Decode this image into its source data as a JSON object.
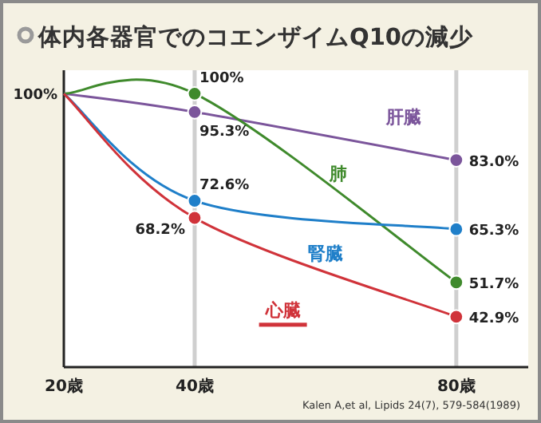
{
  "chart_data": {
    "type": "line",
    "title": "体内各器官でのコエンザイムQ10の減少",
    "x": [
      20,
      40,
      80
    ],
    "xlim": [
      20,
      91
    ],
    "xticks": [
      {
        "value": 20,
        "label": "20歳"
      },
      {
        "value": 40,
        "label": "40歳"
      },
      {
        "value": 80,
        "label": "80歳"
      }
    ],
    "ylim": [
      30,
      106
    ],
    "grid": "x",
    "marker": "circle",
    "line_style": "solid",
    "series": [
      {
        "name": "肝臓",
        "color": "#7b559b",
        "values": [
          100,
          95.3,
          83.0
        ],
        "value_labels": [
          null,
          "95.3%",
          "83.0%"
        ]
      },
      {
        "name": "肺",
        "color": "#3f8a2c",
        "values": [
          100,
          100,
          51.7
        ],
        "value_labels": [
          null,
          "100%",
          "51.7%"
        ]
      },
      {
        "name": "腎臓",
        "color": "#1f7fc9",
        "values": [
          100,
          72.6,
          65.3
        ],
        "value_labels": [
          null,
          "72.6%",
          "65.3%"
        ]
      },
      {
        "name": "心臓",
        "color": "#d0333a",
        "values": [
          100,
          68.2,
          42.9
        ],
        "value_labels": [
          null,
          "68.2%",
          "42.9%"
        ]
      }
    ],
    "annotations": [
      {
        "text": "100%",
        "x": 20,
        "y": 100
      },
      "Kalen A,et al, Lipids 24(7), 579-584(1989)"
    ]
  }
}
